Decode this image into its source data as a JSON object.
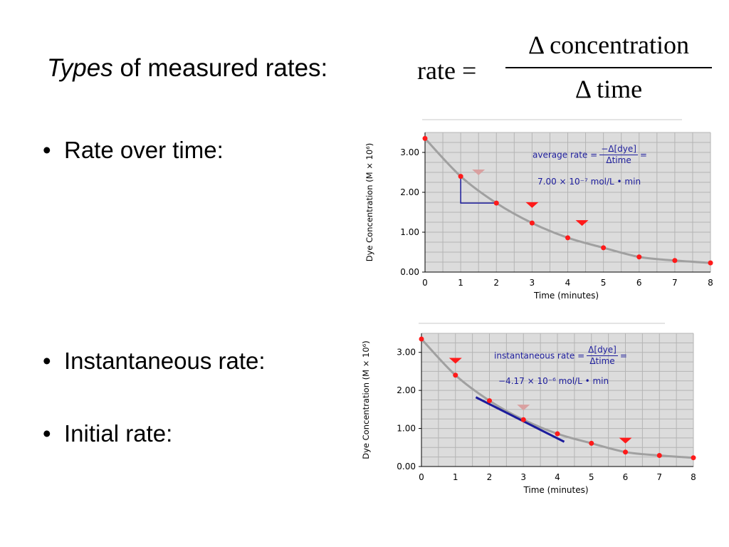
{
  "slide": {
    "title_italic": "Types",
    "title_rest": "of measured rates:",
    "formula": {
      "lhs": "rate =",
      "numerator": "Δ concentration",
      "denominator": "Δ time"
    },
    "bullets": [
      {
        "dot": "•",
        "text": "Rate over time:"
      },
      {
        "dot": "•",
        "text": "Instantaneous rate:"
      },
      {
        "dot": "•",
        "text": "Initial rate:"
      }
    ]
  },
  "chart_data": [
    {
      "type": "scatter",
      "title": "",
      "xlabel": "Time (minutes)",
      "ylabel": "Dye Concentration (M × 10⁶)",
      "xlim": [
        0,
        8
      ],
      "ylim": [
        0,
        3.5
      ],
      "grid": true,
      "x_ticks": [
        "0",
        "1",
        "2",
        "3",
        "4",
        "5",
        "6",
        "7",
        "8"
      ],
      "y_ticks": [
        "0.00",
        "1.00",
        "2.00",
        "3.00"
      ],
      "series": [
        {
          "x": [
            0,
            1,
            2,
            3,
            4,
            5,
            6,
            7,
            8
          ],
          "y": [
            3.35,
            2.4,
            1.73,
            1.23,
            0.86,
            0.61,
            0.38,
            0.29,
            0.23
          ]
        }
      ],
      "marker_color": "#ff1a1a",
      "curve_color": "#a0a0a0",
      "annotation": {
        "label": "average rate =",
        "frac_num": "−Δ[dye]",
        "frac_den": "Δtime",
        "eq": "=",
        "value": "7.00 × 10⁻⁷ mol/L • min"
      }
    },
    {
      "type": "scatter",
      "title": "",
      "xlabel": "Time (minutes)",
      "ylabel": "Dye Concentration (M × 10⁶)",
      "xlim": [
        0,
        8
      ],
      "ylim": [
        0,
        3.5
      ],
      "grid": true,
      "x_ticks": [
        "0",
        "1",
        "2",
        "3",
        "4",
        "5",
        "6",
        "7",
        "8"
      ],
      "y_ticks": [
        "0.00",
        "1.00",
        "2.00",
        "3.00"
      ],
      "series": [
        {
          "x": [
            0,
            1,
            2,
            3,
            4,
            5,
            6,
            7,
            8
          ],
          "y": [
            3.35,
            2.4,
            1.73,
            1.23,
            0.86,
            0.61,
            0.38,
            0.29,
            0.23
          ]
        }
      ],
      "marker_color": "#ff1a1a",
      "curve_color": "#a0a0a0",
      "annotation": {
        "label": "instantaneous rate =",
        "frac_num": "Δ[dye]",
        "frac_den": "Δtime",
        "eq": "=",
        "value": "−4.17 × 10⁻⁶ mol/L • min"
      }
    }
  ]
}
